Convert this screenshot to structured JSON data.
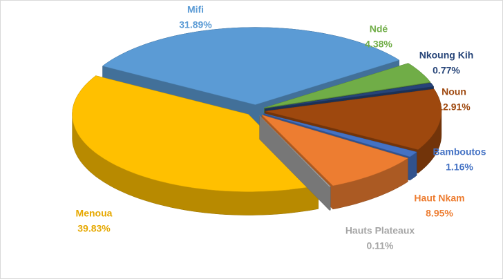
{
  "chart_data": {
    "type": "pie",
    "categories": [
      "Mifi",
      "Ndé",
      "Nkoung Kih",
      "Noun",
      "Bamboutos",
      "Haut Nkam",
      "Hauts Plateaux",
      "Menoua"
    ],
    "values": [
      31.89,
      4.38,
      0.77,
      12.91,
      1.16,
      8.95,
      0.11,
      39.83
    ],
    "value_labels": [
      "31.89%",
      "4.38%",
      "0.77%",
      "12.91%",
      "1.16%",
      "8.95%",
      "0.11%",
      "39.83%"
    ],
    "colors": [
      "#5b9bd5",
      "#70ad47",
      "#264478",
      "#9e480e",
      "#4472c4",
      "#ed7d31",
      "#a5a5a5",
      "#ffc000"
    ]
  }
}
